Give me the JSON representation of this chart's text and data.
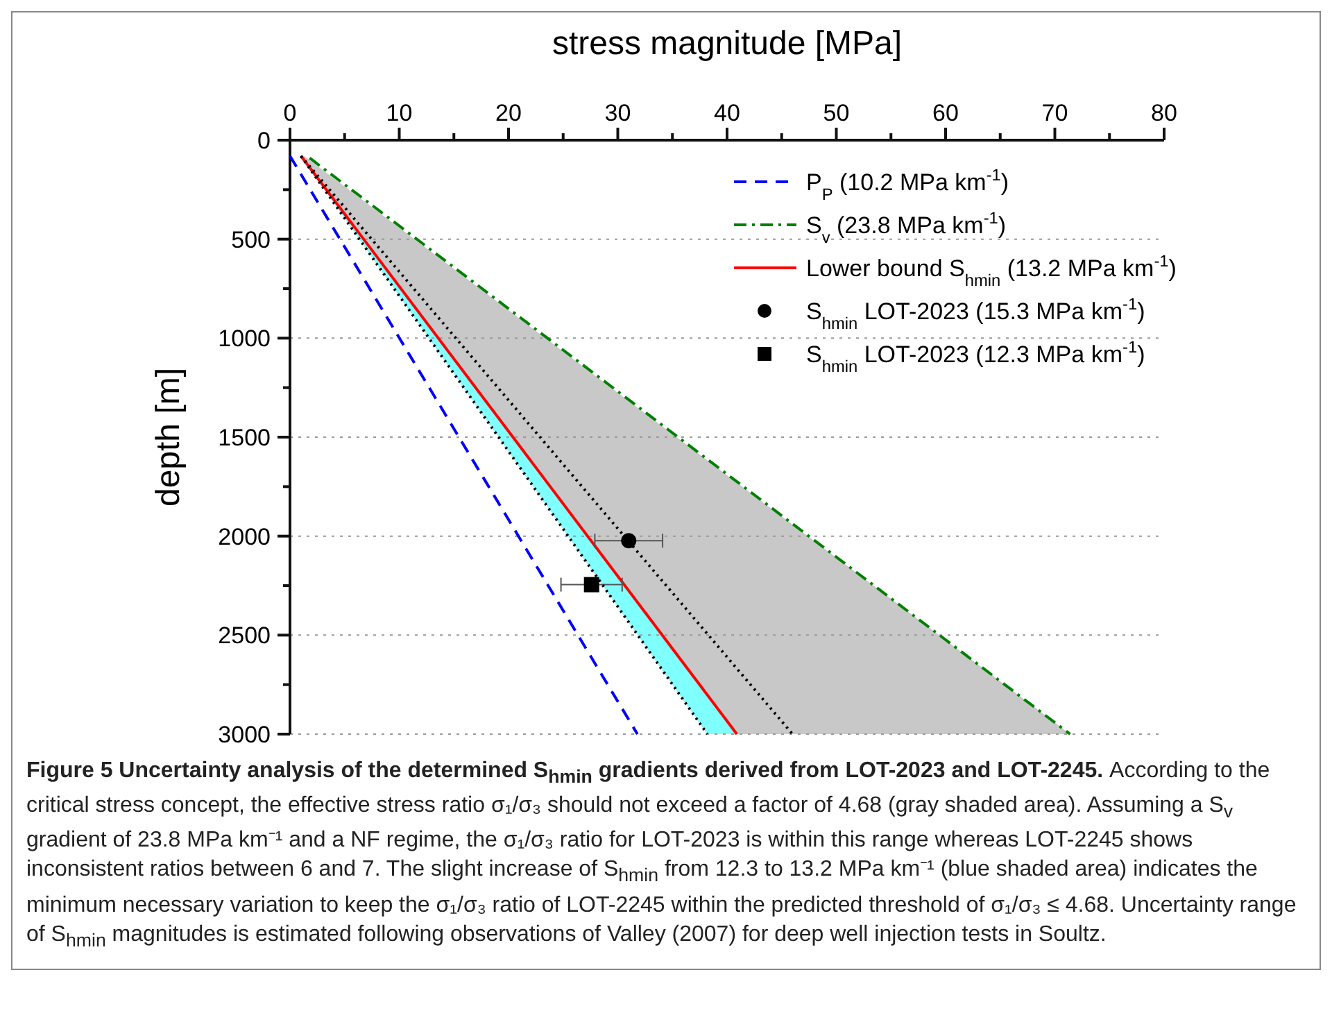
{
  "chart_data": {
    "type": "line",
    "orientation": "horizontal",
    "xlabel": "stress magnitude [MPa]",
    "ylabel": "depth [m]",
    "xlim": [
      0,
      80
    ],
    "xticks": [
      0,
      {
        "value": 5,
        "label": null
      },
      10,
      {
        "value": 15,
        "label": null
      },
      20,
      {
        "value": 25,
        "label": null
      },
      30,
      {
        "value": 35,
        "label": null
      },
      40,
      {
        "value": 45,
        "label": null
      },
      50,
      {
        "value": 55,
        "label": null
      },
      60,
      {
        "value": 65,
        "label": null
      },
      70,
      {
        "value": 75,
        "label": null
      },
      80
    ],
    "ylim": [
      3000,
      0
    ],
    "yticks": [
      0,
      {
        "value": 250,
        "label": null
      },
      500,
      {
        "value": 750,
        "label": null
      },
      1000,
      {
        "value": 1250,
        "label": null
      },
      1500,
      {
        "value": 1750,
        "label": null
      },
      2000,
      {
        "value": 2250,
        "label": null
      },
      2500,
      {
        "value": 2750,
        "label": null
      },
      3000
    ],
    "grid": "y",
    "legend": "top right",
    "series": [
      {
        "color": "#000000",
        "line_style": "dotted",
        "x": [
          80,
          3000
        ],
        "values": [
          1,
          38.2
        ]
      },
      {
        "color": "#000000",
        "line_style": "dotted",
        "x": [
          80,
          3000
        ],
        "values": [
          1,
          46.0
        ],
        "lower": [
          1,
          38.2
        ],
        "upper": [
          1.3,
          71.4
        ]
      },
      {
        "type": "line",
        "name": "P$_{P}$ (10.2 MPa km$^{-1}$)",
        "color": "#0000ff",
        "line_style": "dashed",
        "x": [
          80,
          3000
        ],
        "values": [
          0,
          31.8
        ]
      },
      {
        "type": "line",
        "name": "S$_{v}$ (23.8 MPa km$^{-1}$)",
        "color": "#008000",
        "line_style": "dashdot",
        "x": [
          90,
          3000
        ],
        "values": [
          1.8,
          71.4
        ]
      },
      {
        "type": "line",
        "name": "Lower bound S$_{hmin}$ (13.2 MPa km$^{-1}$)",
        "color": "#ff0000",
        "line_style": "solid",
        "x": [
          80,
          3000
        ],
        "values": [
          1,
          40.9
        ],
        "lower": [
          1,
          38.2
        ],
        "upper": [
          1,
          40.9
        ]
      },
      {
        "type": "scatter",
        "name": "S$_{hmin}$ LOT-2023 (15.3 MPa km$^{-1}$)",
        "color": "#000000",
        "marker": "circle",
        "x": [
          2023
        ],
        "values": [
          31.0
        ],
        "errors": [
          3.1
        ]
      },
      {
        "type": "scatter",
        "name": "S$_{hmin}$ LOT-2023 (12.3 MPa km$^{-1}$)",
        "color": "#000000",
        "marker": "square",
        "x": [
          2245
        ],
        "values": [
          27.6
        ],
        "errors": [
          2.8
        ]
      }
    ],
    "annotations": [
      "Figure 5 Uncertainty analysis of the determined S$_{hmin}$ gradients derived from LOT-2023 and LOT-2245.",
      "According to the critical stress concept, the effective stress ratio σ₁/σ₃ should not exceed a factor of 4.68 (gray shaded area). Assuming a S$_{v}$ gradient of 23.8 MPa km⁻¹ and a NF regime, the σ₁/σ₃ ratio for LOT-2023 is within this range whereas LOT-2245 shows inconsistent ratios between 6 and 7. The slight increase of S$_{hmin}$ from 12.3 to 13.2 MPa km⁻¹ (blue shaded area) indicates the minimum necessary variation to keep the σ₁/σ₃ ratio of LOT-2245 within the predicted threshold of σ₁/σ₃ ≤ 4.68. Uncertainty range of S$_{hmin}$ magnitudes is estimated following observations of Valley (2007) for deep well injection tests in Soultz."
    ]
  }
}
